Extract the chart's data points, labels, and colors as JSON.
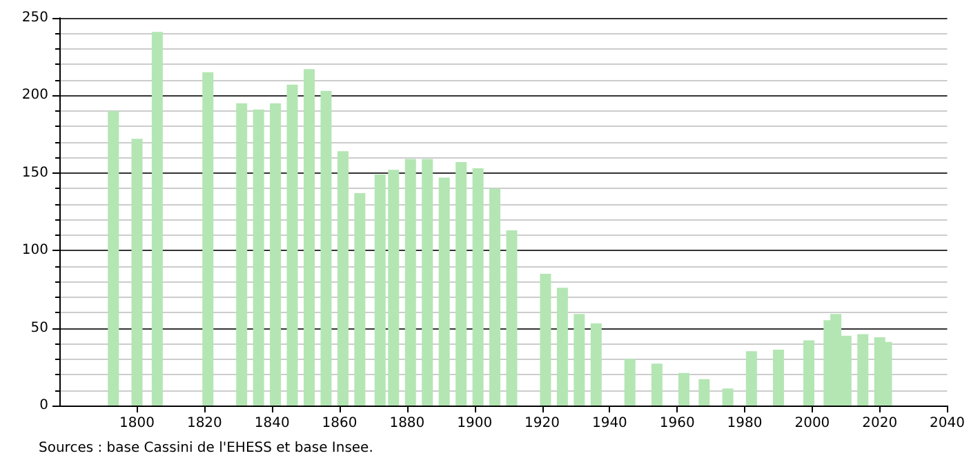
{
  "chart_data": {
    "type": "bar",
    "x": [
      1793,
      1800,
      1806,
      1821,
      1831,
      1836,
      1841,
      1846,
      1851,
      1856,
      1861,
      1866,
      1872,
      1876,
      1881,
      1886,
      1891,
      1896,
      1901,
      1906,
      1911,
      1921,
      1926,
      1931,
      1936,
      1946,
      1954,
      1962,
      1968,
      1975,
      1982,
      1990,
      1999,
      2005,
      2007,
      2010,
      2015,
      2020,
      2022
    ],
    "values": [
      190,
      172,
      241,
      215,
      195,
      191,
      195,
      207,
      217,
      203,
      164,
      137,
      149,
      152,
      159,
      159,
      147,
      157,
      153,
      140,
      113,
      85,
      76,
      59,
      53,
      30,
      27,
      21,
      17,
      11,
      35,
      36,
      42,
      55,
      59,
      45,
      46,
      44,
      41
    ],
    "color": "#b3e6b3",
    "xlim": [
      1777,
      2040
    ],
    "xticks": [
      1800,
      1820,
      1840,
      1860,
      1880,
      1900,
      1920,
      1940,
      1960,
      1980,
      2000,
      2020,
      2040
    ],
    "ylim": [
      0,
      250
    ],
    "yticks": [
      0,
      50,
      100,
      150,
      200,
      250
    ],
    "grid": "y",
    "annotations": [
      "Sources : base Cassini de l'EHESS et base Insee."
    ]
  }
}
